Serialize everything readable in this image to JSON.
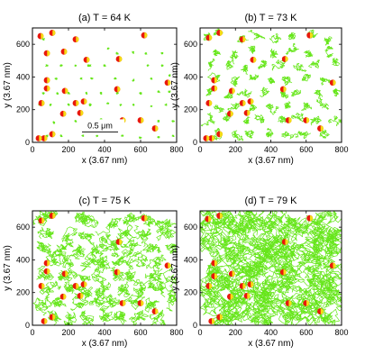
{
  "chart_data": [
    {
      "type": "scatter",
      "title": "(a) T = 64 K",
      "xlabel": "x  (3.67 nm)",
      "ylabel": "y  (3.67 nm)",
      "xlim": [
        0,
        800
      ],
      "ylim": [
        0,
        700
      ],
      "xticks": [
        "0",
        "200",
        "400",
        "600",
        "800"
      ],
      "yticks": [
        "0",
        "200",
        "400",
        "600"
      ],
      "scale_bar": "0.5 μm",
      "trajectory_spread": 0.035,
      "centers": [
        [
          45,
          650
        ],
        [
          60,
          630
        ],
        [
          110,
          670
        ],
        [
          240,
          630
        ],
        [
          175,
          555
        ],
        [
          80,
          545
        ],
        [
          160,
          470
        ],
        [
          240,
          470
        ],
        [
          310,
          470
        ],
        [
          420,
          575
        ],
        [
          470,
          545
        ],
        [
          560,
          550
        ],
        [
          630,
          545
        ],
        [
          720,
          545
        ],
        [
          80,
          470
        ],
        [
          400,
          470
        ],
        [
          320,
          470
        ],
        [
          640,
          470
        ],
        [
          720,
          470
        ],
        [
          130,
          390
        ],
        [
          270,
          390
        ],
        [
          330,
          390
        ],
        [
          460,
          390
        ],
        [
          560,
          380
        ],
        [
          660,
          390
        ],
        [
          760,
          410
        ],
        [
          60,
          300
        ],
        [
          140,
          300
        ],
        [
          200,
          300
        ],
        [
          300,
          300
        ],
        [
          380,
          300
        ],
        [
          470,
          300
        ],
        [
          600,
          300
        ],
        [
          700,
          310
        ],
        [
          760,
          310
        ],
        [
          40,
          230
        ],
        [
          100,
          230
        ],
        [
          200,
          230
        ],
        [
          320,
          230
        ],
        [
          420,
          240
        ],
        [
          490,
          230
        ],
        [
          560,
          230
        ],
        [
          660,
          220
        ],
        [
          740,
          230
        ],
        [
          120,
          120
        ],
        [
          240,
          130
        ],
        [
          300,
          130
        ],
        [
          380,
          140
        ],
        [
          500,
          120
        ],
        [
          600,
          130
        ],
        [
          700,
          130
        ],
        [
          780,
          130
        ],
        [
          80,
          40
        ],
        [
          160,
          40
        ],
        [
          280,
          40
        ],
        [
          360,
          40
        ],
        [
          500,
          40
        ],
        [
          600,
          30
        ],
        [
          700,
          30
        ],
        [
          780,
          40
        ]
      ],
      "particles": [
        [
          45,
          650
        ],
        [
          110,
          670
        ],
        [
          240,
          630
        ],
        [
          620,
          655
        ],
        [
          175,
          555
        ],
        [
          80,
          545
        ],
        [
          300,
          505
        ],
        [
          480,
          510
        ],
        [
          80,
          380
        ],
        [
          750,
          365
        ],
        [
          80,
          330
        ],
        [
          180,
          315
        ],
        [
          470,
          325
        ],
        [
          240,
          240
        ],
        [
          285,
          250
        ],
        [
          50,
          240
        ],
        [
          265,
          180
        ],
        [
          170,
          175
        ],
        [
          500,
          135
        ],
        [
          600,
          135
        ],
        [
          680,
          85
        ],
        [
          110,
          50
        ],
        [
          65,
          25
        ],
        [
          35,
          25
        ]
      ]
    },
    {
      "type": "scatter",
      "title": "(b) T = 73 K",
      "xlabel": "x  (3.67 nm)",
      "ylabel": "y  (3.67 nm)",
      "xlim": [
        0,
        800
      ],
      "ylim": [
        0,
        700
      ],
      "xticks": [
        "0",
        "200",
        "400",
        "600",
        "800"
      ],
      "yticks": [
        "0",
        "200",
        "400",
        "600"
      ],
      "trajectory_spread": 0.07,
      "centers": [
        [
          45,
          650
        ],
        [
          110,
          670
        ],
        [
          240,
          630
        ],
        [
          330,
          640
        ],
        [
          430,
          620
        ],
        [
          530,
          640
        ],
        [
          640,
          650
        ],
        [
          720,
          620
        ],
        [
          90,
          560
        ],
        [
          190,
          540
        ],
        [
          300,
          560
        ],
        [
          420,
          540
        ],
        [
          520,
          560
        ],
        [
          620,
          540
        ],
        [
          720,
          560
        ],
        [
          60,
          470
        ],
        [
          160,
          470
        ],
        [
          260,
          460
        ],
        [
          360,
          470
        ],
        [
          460,
          470
        ],
        [
          560,
          460
        ],
        [
          660,
          480
        ],
        [
          760,
          470
        ],
        [
          100,
          390
        ],
        [
          200,
          380
        ],
        [
          300,
          390
        ],
        [
          400,
          390
        ],
        [
          500,
          380
        ],
        [
          600,
          390
        ],
        [
          700,
          380
        ],
        [
          60,
          300
        ],
        [
          160,
          300
        ],
        [
          260,
          310
        ],
        [
          360,
          300
        ],
        [
          460,
          300
        ],
        [
          560,
          300
        ],
        [
          660,
          300
        ],
        [
          760,
          300
        ],
        [
          100,
          220
        ],
        [
          200,
          230
        ],
        [
          300,
          220
        ],
        [
          400,
          220
        ],
        [
          500,
          220
        ],
        [
          600,
          220
        ],
        [
          700,
          220
        ],
        [
          60,
          140
        ],
        [
          160,
          140
        ],
        [
          260,
          140
        ],
        [
          360,
          140
        ],
        [
          460,
          140
        ],
        [
          560,
          140
        ],
        [
          660,
          140
        ],
        [
          760,
          140
        ],
        [
          100,
          50
        ],
        [
          200,
          50
        ],
        [
          300,
          50
        ],
        [
          400,
          50
        ],
        [
          500,
          50
        ],
        [
          600,
          50
        ],
        [
          700,
          50
        ]
      ],
      "particles": [
        [
          50,
          640
        ],
        [
          110,
          670
        ],
        [
          240,
          630
        ],
        [
          620,
          655
        ],
        [
          300,
          505
        ],
        [
          480,
          510
        ],
        [
          80,
          380
        ],
        [
          750,
          365
        ],
        [
          80,
          330
        ],
        [
          180,
          315
        ],
        [
          470,
          325
        ],
        [
          240,
          240
        ],
        [
          285,
          250
        ],
        [
          50,
          240
        ],
        [
          265,
          180
        ],
        [
          170,
          175
        ],
        [
          500,
          135
        ],
        [
          600,
          135
        ],
        [
          680,
          85
        ],
        [
          110,
          50
        ],
        [
          65,
          25
        ],
        [
          35,
          25
        ]
      ]
    },
    {
      "type": "scatter",
      "title": "(c) T = 75 K",
      "xlabel": "x  (3.67 nm)",
      "ylabel": "y  (3.67 nm)",
      "xlim": [
        0,
        800
      ],
      "ylim": [
        0,
        700
      ],
      "xticks": [
        "0",
        "200",
        "400",
        "600",
        "800"
      ],
      "yticks": [
        "0",
        "200",
        "400",
        "600"
      ],
      "trajectory_spread": 0.12,
      "centers": [
        [
          45,
          650
        ],
        [
          110,
          670
        ],
        [
          240,
          630
        ],
        [
          330,
          640
        ],
        [
          430,
          620
        ],
        [
          530,
          640
        ],
        [
          640,
          650
        ],
        [
          720,
          620
        ],
        [
          90,
          560
        ],
        [
          190,
          540
        ],
        [
          300,
          560
        ],
        [
          420,
          540
        ],
        [
          520,
          560
        ],
        [
          620,
          540
        ],
        [
          720,
          560
        ],
        [
          60,
          470
        ],
        [
          160,
          470
        ],
        [
          260,
          460
        ],
        [
          360,
          470
        ],
        [
          460,
          470
        ],
        [
          560,
          460
        ],
        [
          660,
          480
        ],
        [
          760,
          470
        ],
        [
          100,
          390
        ],
        [
          200,
          380
        ],
        [
          300,
          390
        ],
        [
          400,
          390
        ],
        [
          500,
          380
        ],
        [
          600,
          390
        ],
        [
          700,
          380
        ],
        [
          60,
          300
        ],
        [
          160,
          300
        ],
        [
          260,
          310
        ],
        [
          360,
          300
        ],
        [
          460,
          300
        ],
        [
          560,
          300
        ],
        [
          660,
          300
        ],
        [
          760,
          300
        ],
        [
          100,
          220
        ],
        [
          200,
          230
        ],
        [
          300,
          220
        ],
        [
          400,
          220
        ],
        [
          500,
          220
        ],
        [
          600,
          220
        ],
        [
          700,
          220
        ],
        [
          60,
          140
        ],
        [
          160,
          140
        ],
        [
          260,
          140
        ],
        [
          360,
          140
        ],
        [
          460,
          140
        ],
        [
          560,
          140
        ],
        [
          660,
          140
        ],
        [
          760,
          140
        ],
        [
          100,
          50
        ],
        [
          200,
          50
        ],
        [
          300,
          50
        ],
        [
          400,
          50
        ],
        [
          500,
          50
        ],
        [
          600,
          50
        ],
        [
          700,
          50
        ]
      ],
      "particles": [
        [
          50,
          640
        ],
        [
          110,
          670
        ],
        [
          620,
          655
        ],
        [
          480,
          510
        ],
        [
          80,
          380
        ],
        [
          750,
          365
        ],
        [
          80,
          330
        ],
        [
          180,
          315
        ],
        [
          470,
          325
        ],
        [
          240,
          240
        ],
        [
          285,
          250
        ],
        [
          50,
          240
        ],
        [
          265,
          180
        ],
        [
          170,
          175
        ],
        [
          500,
          135
        ],
        [
          600,
          135
        ],
        [
          680,
          85
        ],
        [
          110,
          50
        ],
        [
          65,
          25
        ]
      ]
    },
    {
      "type": "scatter",
      "title": "(d) T = 79 K",
      "xlabel": "x  (3.67 nm)",
      "ylabel": "y  (3.67 nm)",
      "xlim": [
        0,
        800
      ],
      "ylim": [
        0,
        700
      ],
      "xticks": [
        "0",
        "200",
        "400",
        "600",
        "800"
      ],
      "yticks": [
        "0",
        "200",
        "400",
        "600"
      ],
      "trajectory_spread": 0.2,
      "centers": [
        [
          45,
          650
        ],
        [
          110,
          670
        ],
        [
          240,
          630
        ],
        [
          330,
          640
        ],
        [
          430,
          620
        ],
        [
          530,
          640
        ],
        [
          640,
          650
        ],
        [
          720,
          620
        ],
        [
          90,
          560
        ],
        [
          190,
          540
        ],
        [
          300,
          560
        ],
        [
          420,
          540
        ],
        [
          520,
          560
        ],
        [
          620,
          540
        ],
        [
          720,
          560
        ],
        [
          60,
          470
        ],
        [
          160,
          470
        ],
        [
          260,
          460
        ],
        [
          360,
          470
        ],
        [
          460,
          470
        ],
        [
          560,
          460
        ],
        [
          660,
          480
        ],
        [
          760,
          470
        ],
        [
          100,
          390
        ],
        [
          200,
          380
        ],
        [
          300,
          390
        ],
        [
          400,
          390
        ],
        [
          500,
          380
        ],
        [
          600,
          390
        ],
        [
          700,
          380
        ],
        [
          60,
          300
        ],
        [
          160,
          300
        ],
        [
          260,
          310
        ],
        [
          360,
          300
        ],
        [
          460,
          300
        ],
        [
          560,
          300
        ],
        [
          660,
          300
        ],
        [
          760,
          300
        ],
        [
          100,
          220
        ],
        [
          200,
          230
        ],
        [
          300,
          220
        ],
        [
          400,
          220
        ],
        [
          500,
          220
        ],
        [
          600,
          220
        ],
        [
          700,
          220
        ],
        [
          60,
          140
        ],
        [
          160,
          140
        ],
        [
          260,
          140
        ],
        [
          360,
          140
        ],
        [
          460,
          140
        ],
        [
          560,
          140
        ],
        [
          660,
          140
        ],
        [
          760,
          140
        ],
        [
          100,
          50
        ],
        [
          200,
          50
        ],
        [
          300,
          50
        ],
        [
          400,
          50
        ],
        [
          500,
          50
        ],
        [
          600,
          50
        ],
        [
          700,
          50
        ]
      ],
      "particles": [
        [
          45,
          650
        ],
        [
          110,
          670
        ],
        [
          620,
          655
        ],
        [
          480,
          510
        ],
        [
          80,
          380
        ],
        [
          750,
          365
        ],
        [
          80,
          300
        ],
        [
          180,
          315
        ],
        [
          470,
          325
        ],
        [
          240,
          240
        ],
        [
          285,
          250
        ],
        [
          50,
          240
        ],
        [
          265,
          180
        ],
        [
          170,
          175
        ],
        [
          500,
          135
        ],
        [
          600,
          135
        ],
        [
          680,
          85
        ],
        [
          110,
          50
        ],
        [
          65,
          25
        ]
      ]
    }
  ],
  "colors": {
    "trajectory": "#66e61a",
    "particle_red": "#e8180c",
    "particle_yellow": "#f5dc14"
  }
}
